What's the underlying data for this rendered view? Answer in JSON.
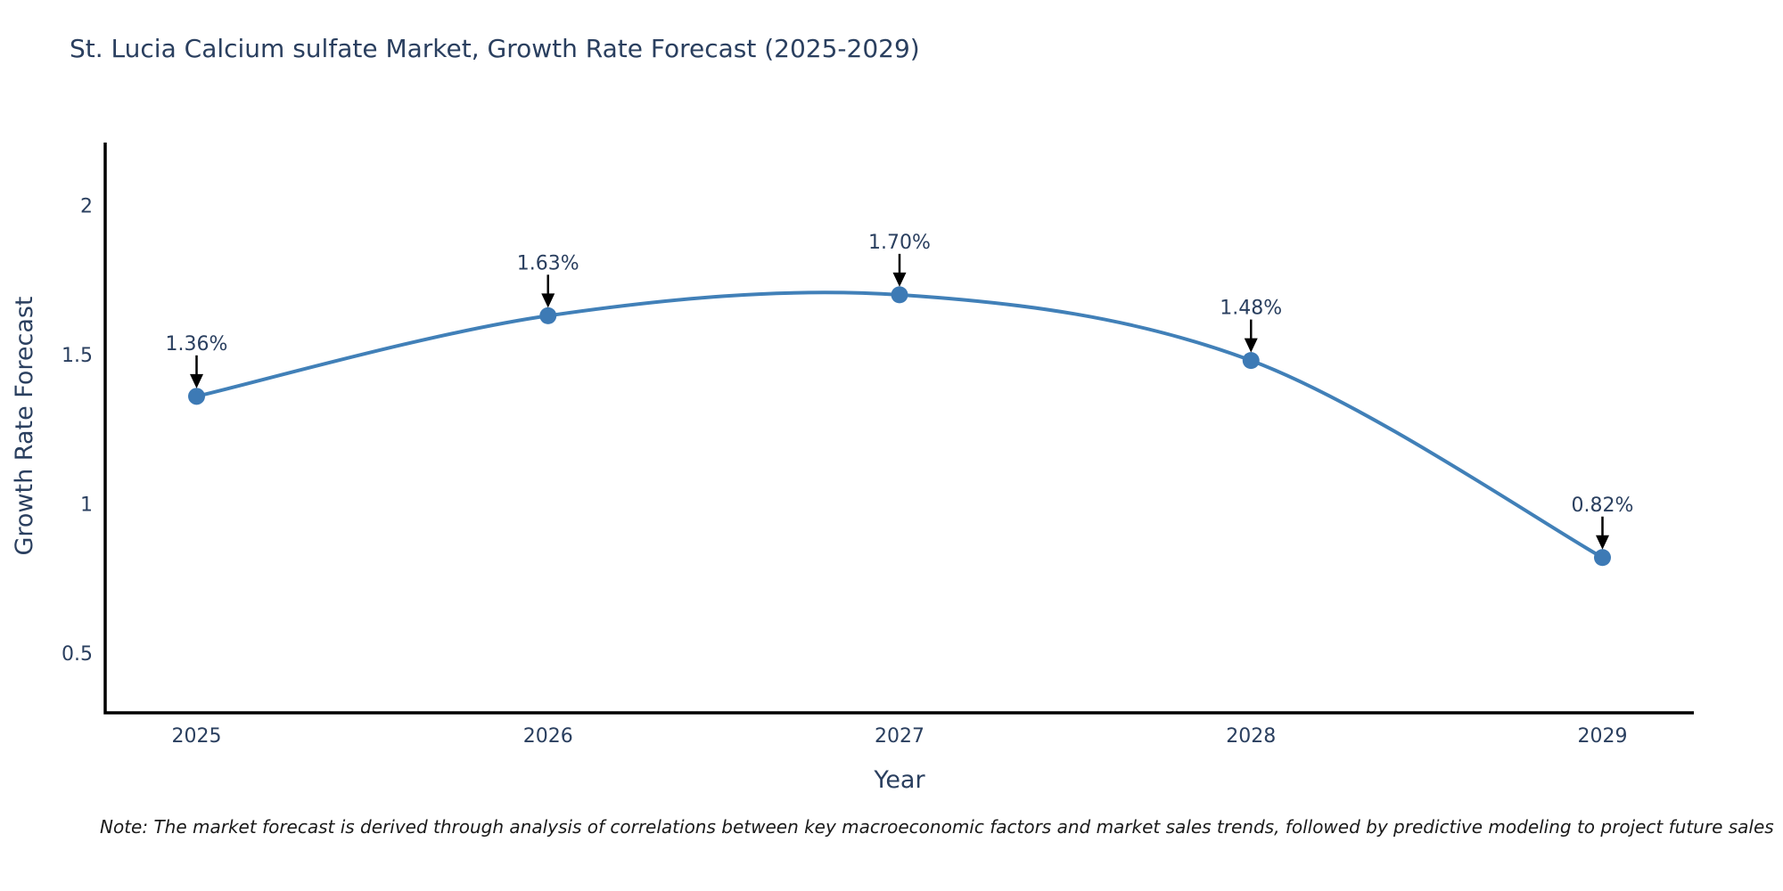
{
  "title": "St. Lucia Calcium sulfate Market, Growth Rate Forecast (2025-2029)",
  "note": "Note: The market forecast is derived through analysis of correlations between key macroeconomic factors and market sales trends, followed by predictive modeling to project future sales",
  "chart_data": {
    "type": "line",
    "title": "St. Lucia Calcium sulfate Market, Growth Rate Forecast (2025-2029)",
    "xlabel": "Year",
    "ylabel": "Growth Rate Forecast",
    "x": [
      2025,
      2026,
      2027,
      2028,
      2029
    ],
    "values": [
      1.36,
      1.63,
      1.7,
      1.48,
      0.82
    ],
    "point_labels": [
      "1.36%",
      "1.63%",
      "1.70%",
      "1.48%",
      "0.82%"
    ],
    "x_tick_labels": [
      "2025",
      "2026",
      "2027",
      "2028",
      "2029"
    ],
    "y_ticks": [
      0.5,
      1,
      1.5,
      2
    ],
    "y_tick_labels": [
      "0.5",
      "1",
      "1.5",
      "2"
    ],
    "xlim": [
      2024.74,
      2029.26
    ],
    "ylim": [
      0.3,
      2.21
    ],
    "grid": false,
    "smoothing": true,
    "legend": "none",
    "colors": {
      "line": "#4180b8",
      "marker": "#3d7ab5",
      "axis": "#000000",
      "text": "#2a3f5f",
      "annotation_arrow": "#000000"
    }
  }
}
